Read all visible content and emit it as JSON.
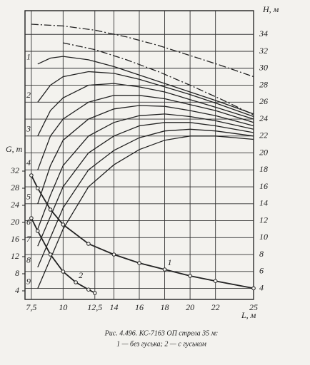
{
  "chart_data": {
    "type": "line",
    "x_label": "L, м",
    "y_label": "G, т",
    "y2_label": "H, м",
    "caption": [
      "Рис. 4.496. КС-7163 ОП стрела 35 м:",
      "1 — без гуська; 2 — с гуськом"
    ],
    "xlim": [
      7,
      25
    ],
    "xticks": [
      {
        "value": 7.5,
        "label": "7,5"
      },
      10,
      {
        "value": 12.5,
        "label": "12,5"
      },
      14,
      16,
      18,
      20,
      22,
      25
    ],
    "ylim": [
      2,
      69.5
    ],
    "yticks": [
      4,
      8,
      12,
      16,
      20,
      24,
      28,
      32
    ],
    "y2lim": [
      2.7,
      36.8
    ],
    "y2ticks": [
      4,
      6,
      8,
      10,
      12,
      14,
      16,
      18,
      20,
      22,
      24,
      26,
      28,
      30,
      32,
      34
    ],
    "grid": true,
    "color": "#222222",
    "series": [
      {
        "axis": "y2",
        "style": "dashdot",
        "x": [
          7.5,
          10,
          12.5,
          15,
          17.5,
          20,
          22.5,
          25
        ],
        "values": [
          35.2,
          35,
          34.5,
          33.7,
          32.7,
          31.5,
          30.3,
          29
        ]
      },
      {
        "axis": "y2",
        "style": "dashdot",
        "x": [
          10,
          12.5,
          15,
          17.5,
          20,
          22.5,
          25
        ],
        "values": [
          33,
          32.2,
          31,
          29.6,
          28,
          26.3,
          24.5
        ]
      },
      {
        "name": "1",
        "axis": "y2",
        "x": [
          8,
          9,
          10,
          12,
          14,
          16,
          18,
          20,
          22,
          25
        ],
        "values": [
          30.5,
          31.2,
          31.4,
          31,
          30.2,
          29.2,
          28.2,
          27.2,
          26.2,
          24.6
        ]
      },
      {
        "name": "2",
        "axis": "y2",
        "x": [
          8,
          9,
          10,
          12,
          14,
          16,
          18,
          20,
          22,
          25
        ],
        "values": [
          26,
          28,
          29,
          29.6,
          29.4,
          28.7,
          27.8,
          26.9,
          25.9,
          24.3
        ]
      },
      {
        "name": "3",
        "axis": "y2",
        "x": [
          8,
          9,
          10,
          12,
          14,
          16,
          18,
          20,
          22,
          25
        ],
        "values": [
          22,
          25,
          26.5,
          28,
          28.2,
          27.8,
          27.2,
          26.3,
          25.4,
          24
        ]
      },
      {
        "name": "4",
        "axis": "y2",
        "x": [
          8,
          9,
          10,
          12,
          14,
          16,
          18,
          20,
          22,
          25
        ],
        "values": [
          18,
          22,
          24,
          26,
          26.8,
          26.8,
          26.4,
          25.7,
          25,
          23.6
        ]
      },
      {
        "name": "5",
        "axis": "y2",
        "x": [
          8,
          9,
          10,
          12,
          14,
          16,
          18,
          20,
          22,
          25
        ],
        "values": [
          14,
          18.5,
          21.5,
          24,
          25.2,
          25.6,
          25.5,
          25,
          24.4,
          23.2
        ]
      },
      {
        "name": "6",
        "axis": "y2",
        "x": [
          8,
          9,
          10,
          12,
          14,
          16,
          18,
          20,
          22,
          25
        ],
        "values": [
          11,
          15,
          18.5,
          22,
          23.6,
          24.4,
          24.6,
          24.3,
          23.8,
          22.8
        ]
      },
      {
        "name": "7",
        "axis": "y2",
        "x": [
          8,
          9,
          10,
          12,
          14,
          16,
          18,
          20,
          22,
          25
        ],
        "values": [
          9,
          12.5,
          16,
          20,
          22,
          23.2,
          23.6,
          23.6,
          23.2,
          22.4
        ]
      },
      {
        "name": "8",
        "axis": "y2",
        "x": [
          8,
          9,
          10,
          12,
          14,
          16,
          18,
          20,
          22,
          25
        ],
        "values": [
          6.5,
          10,
          13.5,
          18,
          20.3,
          21.8,
          22.6,
          22.8,
          22.6,
          22
        ]
      },
      {
        "name": "9",
        "axis": "y2",
        "x": [
          8,
          9,
          10,
          12,
          14,
          16,
          18,
          20,
          22,
          25
        ],
        "values": [
          4,
          7.5,
          11,
          16,
          18.6,
          20.4,
          21.5,
          22,
          22,
          21.6
        ]
      },
      {
        "name": "1",
        "markers": true,
        "x": [
          7.5,
          8,
          9,
          10,
          12,
          14,
          16,
          18,
          20,
          22,
          25
        ],
        "values": [
          31,
          28,
          23,
          19.5,
          15,
          12.5,
          10.5,
          9,
          7.5,
          6.3,
          4.6
        ]
      },
      {
        "name": "2",
        "markers": true,
        "x": [
          7.5,
          8,
          9,
          10,
          11,
          12,
          12.5
        ],
        "values": [
          21,
          18,
          12.5,
          8.5,
          6,
          4.3,
          3.5
        ]
      }
    ]
  }
}
